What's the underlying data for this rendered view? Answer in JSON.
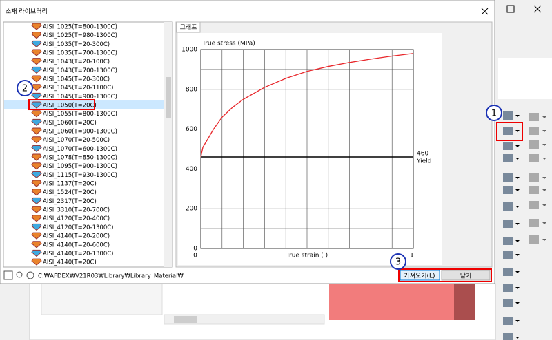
{
  "dialog": {
    "title": "소재 라이브러리",
    "tab": "그래프",
    "path": "C:₩AFDEX₩V21R03₩Library₩Library_Material₩",
    "buttons": [
      "가져오기(L)",
      "닫기"
    ]
  },
  "list": {
    "items": [
      "AISI_1025(T=800-1300C)",
      "AISI_1025(T=980-1300C)",
      "AISI_1035(T=20-300C)",
      "AISI_1035(T=700-1300C)",
      "AISI_1043(T=20-100C)",
      "AISI_1043(T=700-1300C)",
      "AISI_1045(T=20-300C)",
      "AISI_1045(T=20-1100C)",
      "AISI_1045(T=900-1300C)",
      "AISI_1050(T=20C)",
      "AISI_1055(T=800-1300C)",
      "AISI_1060(T=20C)",
      "AISI_1060(T=900-1300C)",
      "AISI_1070(T=20-500C)",
      "AISI_1070(T=600-1300C)",
      "AISI_1078(T=850-1300C)",
      "AISI_1095(T=900-1300C)",
      "AISI_1115(T=930-1300C)",
      "AISI_1137(T=20C)",
      "AISI_1524(T=20C)",
      "AISI_2317(T=20C)",
      "AISI_3310(T=20-700C)",
      "AISI_4120(T=20-400C)",
      "AISI_4120(T=20-1300C)",
      "AISI_4140(T=20-200C)",
      "AISI_4140(T=20-600C)",
      "AISI_4140(T=20-1300C)",
      "AISI_4140(T=20C)"
    ],
    "selected": 9
  },
  "annotations": [
    "1",
    "2",
    "3"
  ],
  "chart_data": {
    "type": "line",
    "y_label": "True stress (MPa)",
    "x_label": "True strain (  )",
    "x": [
      0,
      0.01,
      0.03,
      0.06,
      0.1,
      0.15,
      0.2,
      0.3,
      0.4,
      0.5,
      0.6,
      0.7,
      0.8,
      0.9,
      1
    ],
    "values": [
      460,
      510,
      545,
      600,
      660,
      710,
      750,
      810,
      855,
      890,
      915,
      935,
      952,
      967,
      980
    ],
    "color": "#e8262a",
    "xlim": [
      0,
      1
    ],
    "xticks": [
      0,
      1
    ],
    "minor_xticks": [
      0.1,
      0.2,
      0.3,
      0.4,
      0.5,
      0.6,
      0.7,
      0.8,
      0.9
    ],
    "ylim": [
      0,
      1000
    ],
    "yticks": [
      0,
      200,
      400,
      600,
      800,
      1000
    ],
    "minor_yticks": [
      100,
      300,
      500,
      700,
      900
    ],
    "grid": true,
    "yield_value": 460,
    "yield_label": "Yield"
  }
}
